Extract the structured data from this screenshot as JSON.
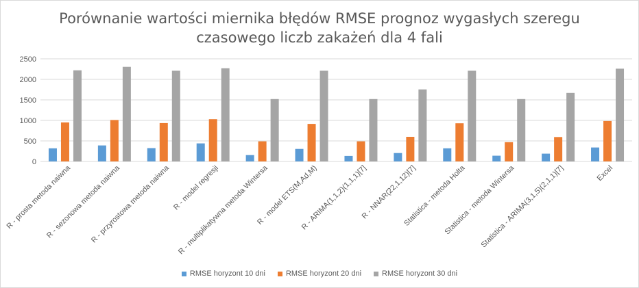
{
  "chart_data": {
    "type": "bar",
    "title": "Porównanie wartości miernika błędów RMSE prognoz wygasłych szeregu czasowego liczb zakażeń dla 4 fali",
    "title_lines": [
      "Porównanie wartości miernika błędów RMSE prognoz wygasłych szeregu",
      "czasowego liczb zakażeń dla 4 fali"
    ],
    "categories": [
      "R - prosta metoda naiwna",
      "R - sezonowa metoda naiwna",
      "R - przyrostowa metoda naiwna",
      "R - model regresji",
      "R - multiplikatywna metoda Wintersa",
      "R - model ETS(M,Ad,M)",
      "R - ARIMA(1,1,2)(1,1,1)[7]",
      "R - NNAR(22,1,12)[7]",
      "Statistica - metoda Holta",
      "Statistica - metoda Wintersa",
      "Statistica - ARIMA(3,1,5)(2,1,1)[7]",
      "Excel"
    ],
    "series": [
      {
        "name": "RMSE horyzont 10 dni",
        "color": "#5b9bd5",
        "values": [
          320,
          390,
          325,
          440,
          155,
          305,
          135,
          205,
          320,
          140,
          190,
          340
        ]
      },
      {
        "name": "RMSE horyzont 20 dni",
        "color": "#ed7d31",
        "values": [
          950,
          1010,
          935,
          1030,
          490,
          915,
          490,
          600,
          930,
          470,
          595,
          985
        ]
      },
      {
        "name": "RMSE horyzont 30 dni",
        "color": "#a5a5a5",
        "values": [
          2220,
          2305,
          2210,
          2270,
          1520,
          2210,
          1520,
          1755,
          2210,
          1520,
          1670,
          2260
        ]
      }
    ],
    "ylim": [
      0,
      2500
    ],
    "yticks": [
      0,
      500,
      1000,
      1500,
      2000,
      2500
    ],
    "ytick_labels": [
      "0",
      "500",
      "1000",
      "1500",
      "2000",
      "2500"
    ],
    "grid": true,
    "legend_position": "bottom",
    "xlabel": "",
    "ylabel": ""
  }
}
